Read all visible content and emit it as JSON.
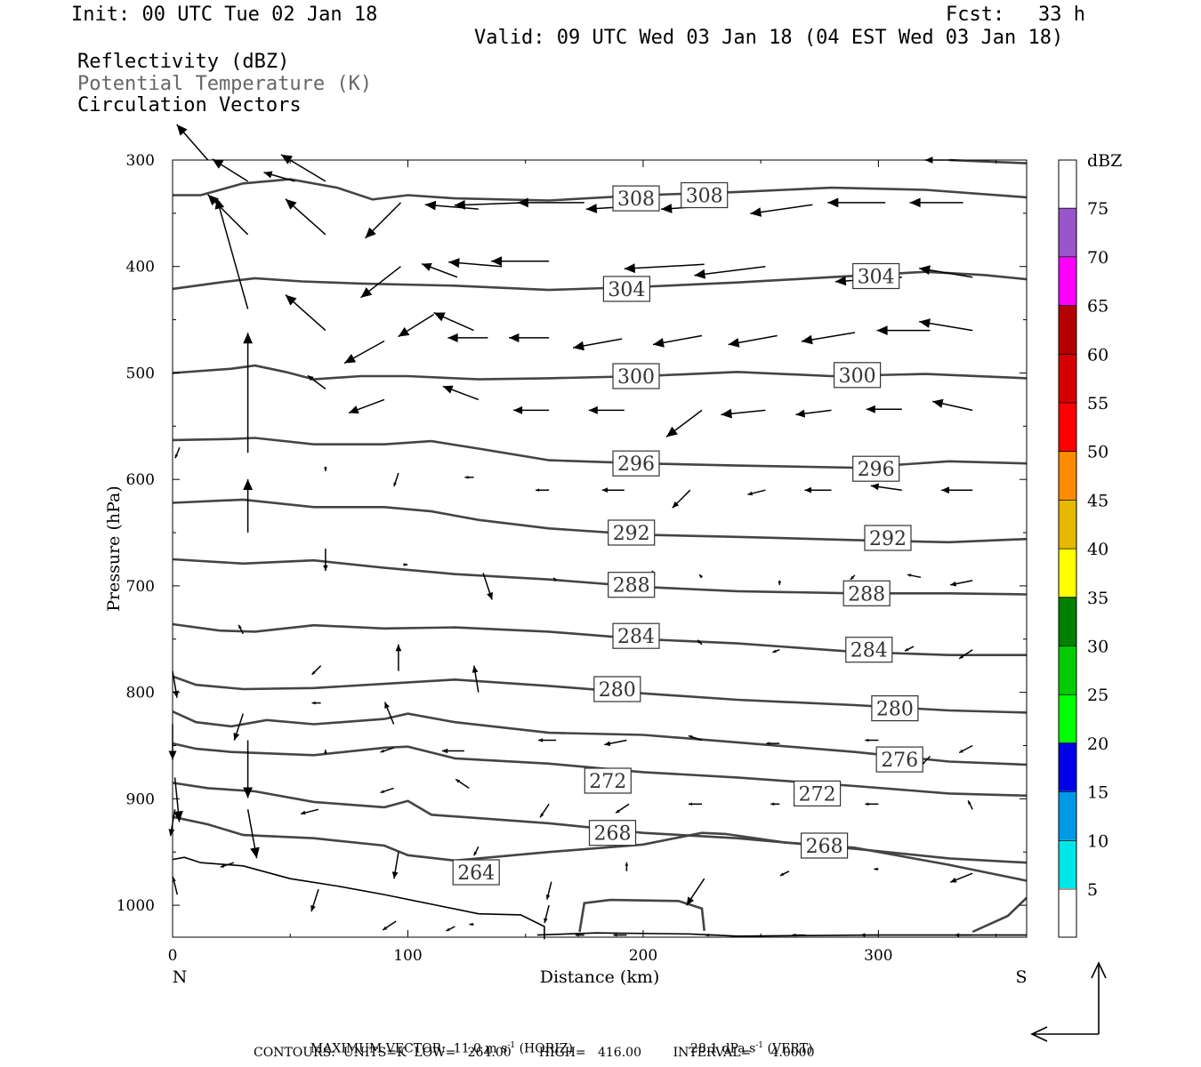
{
  "header": {
    "init": "Init: 00 UTC Tue 02 Jan 18",
    "fcst_label": "Fcst:",
    "fcst_value": "33 h",
    "valid": "Valid: 09 UTC Wed 03 Jan 18 (04 EST Wed 03 Jan 18)",
    "field1": "Reflectivity (dBZ)",
    "field2": "Potential Temperature (K)",
    "field3": "Circulation Vectors"
  },
  "chart_data": {
    "type": "contour",
    "xlabel": "Distance (km)",
    "ylabel": "Pressure (hPa)",
    "xlim": [
      0,
      363
    ],
    "ylim": [
      1030,
      300
    ],
    "x_ticks": [
      "0",
      "100",
      "200",
      "300"
    ],
    "y_ticks": [
      "300",
      "400",
      "500",
      "600",
      "700",
      "800",
      "900",
      "1000"
    ],
    "left_end_label": "N",
    "right_end_label": "S",
    "contour_labels": [
      {
        "value": "308",
        "x": 197,
        "p": 336
      },
      {
        "value": "308",
        "x": 226,
        "p": 333
      },
      {
        "value": "304",
        "x": 193,
        "p": 421
      },
      {
        "value": "304",
        "x": 299,
        "p": 409
      },
      {
        "value": "300",
        "x": 197,
        "p": 503
      },
      {
        "value": "300",
        "x": 291,
        "p": 502
      },
      {
        "value": "296",
        "x": 197,
        "p": 585
      },
      {
        "value": "296",
        "x": 299,
        "p": 590
      },
      {
        "value": "292",
        "x": 195,
        "p": 650
      },
      {
        "value": "292",
        "x": 304,
        "p": 655
      },
      {
        "value": "288",
        "x": 195,
        "p": 699
      },
      {
        "value": "288",
        "x": 295,
        "p": 707
      },
      {
        "value": "284",
        "x": 197,
        "p": 747
      },
      {
        "value": "284",
        "x": 296,
        "p": 760
      },
      {
        "value": "280",
        "x": 189,
        "p": 797
      },
      {
        "value": "280",
        "x": 307,
        "p": 815
      },
      {
        "value": "276",
        "x": 309,
        "p": 863
      },
      {
        "value": "272",
        "x": 185,
        "p": 883
      },
      {
        "value": "272",
        "x": 274,
        "p": 895
      },
      {
        "value": "268",
        "x": 187,
        "p": 932
      },
      {
        "value": "268",
        "x": 277,
        "p": 944
      },
      {
        "value": "264",
        "x": 129,
        "p": 969
      }
    ],
    "colorbar": {
      "title": "dBZ",
      "labels": [
        "5",
        "10",
        "15",
        "20",
        "25",
        "30",
        "35",
        "40",
        "45",
        "50",
        "55",
        "60",
        "65",
        "70",
        "75"
      ],
      "colors": [
        "#ffffff",
        "#00e6e6",
        "#0099e6",
        "#0000e6",
        "#00ff00",
        "#00cc00",
        "#008000",
        "#ffff00",
        "#e6b800",
        "#ff8c00",
        "#ff0000",
        "#d40000",
        "#b40000",
        "#ff00ff",
        "#9955cc",
        "#ffffff"
      ]
    }
  },
  "footer": {
    "max_vector": "MAXIMUM VECTOR:  11.0 m s",
    "horiz": "(HORIZ)",
    "vert_val": "28.1 dPa s",
    "vert": "(VERT)",
    "sup": "-1",
    "contours": "CONTOURS:  UNITS=K  LOW=   264.00       HIGH=   416.00        INTERVAL=     4.0000"
  }
}
